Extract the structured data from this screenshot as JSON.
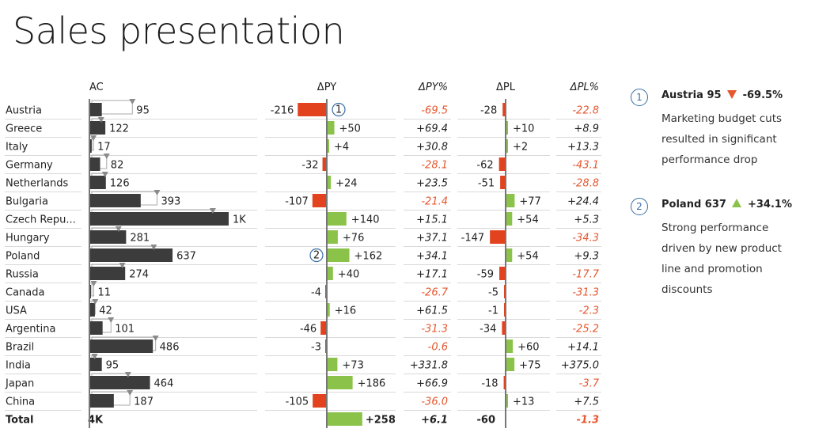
{
  "title": "Sales presentation",
  "colors": {
    "bar_ac": "#3c3c3c",
    "positive": "#8bc34a",
    "negative": "#e2431e",
    "neg_text": "#e5572e",
    "axis": "#777777",
    "badge": "#3a6ea5"
  },
  "chart_data": {
    "type": "table",
    "headers": {
      "country": "",
      "ac": "AC",
      "dpy": "ΔPY",
      "dpy_pct": "ΔPY%",
      "dpl": "ΔPL",
      "dpl_pct": "ΔPL%"
    },
    "rows": [
      {
        "name": "Austria",
        "ac": 95,
        "ac_label": "95",
        "py": 311,
        "dpy": -216,
        "dpy_label": "-216",
        "dpy_pct": "-69.5",
        "dpl": -28,
        "dpl_label": "-28",
        "dpl_pct": "-22.8",
        "marker": "1"
      },
      {
        "name": "Greece",
        "ac": 122,
        "ac_label": "122",
        "py": 72,
        "dpy": 50,
        "dpy_label": "+50",
        "dpy_pct": "+69.4",
        "dpl": 10,
        "dpl_label": "+10",
        "dpl_pct": "+8.9"
      },
      {
        "name": "Italy",
        "ac": 17,
        "ac_label": "17",
        "py": 13,
        "dpy": 4,
        "dpy_label": "+4",
        "dpy_pct": "+30.8",
        "dpl": 2,
        "dpl_label": "+2",
        "dpl_pct": "+13.3"
      },
      {
        "name": "Germany",
        "ac": 82,
        "ac_label": "82",
        "py": 114,
        "dpy": -32,
        "dpy_label": "-32",
        "dpy_pct": "-28.1",
        "dpl": -62,
        "dpl_label": "-62",
        "dpl_pct": "-43.1"
      },
      {
        "name": "Netherlands",
        "ac": 126,
        "ac_label": "126",
        "py": 102,
        "dpy": 24,
        "dpy_label": "+24",
        "dpy_pct": "+23.5",
        "dpl": -51,
        "dpl_label": "-51",
        "dpl_pct": "-28.8"
      },
      {
        "name": "Bulgaria",
        "ac": 393,
        "ac_label": "393",
        "py": 500,
        "dpy": -107,
        "dpy_label": "-107",
        "dpy_pct": "-21.4",
        "dpl": 77,
        "dpl_label": "+77",
        "dpl_pct": "+24.4"
      },
      {
        "name": "Czech Repu...",
        "ac": 1067,
        "ac_label": "1K",
        "py": 927,
        "dpy": 140,
        "dpy_label": "+140",
        "dpy_pct": "+15.1",
        "dpl": 54,
        "dpl_label": "+54",
        "dpl_pct": "+5.3"
      },
      {
        "name": "Hungary",
        "ac": 281,
        "ac_label": "281",
        "py": 205,
        "dpy": 76,
        "dpy_label": "+76",
        "dpy_pct": "+37.1",
        "dpl": -147,
        "dpl_label": "-147",
        "dpl_pct": "-34.3"
      },
      {
        "name": "Poland",
        "ac": 637,
        "ac_label": "637",
        "py": 475,
        "dpy": 162,
        "dpy_label": "+162",
        "dpy_pct": "+34.1",
        "dpl": 54,
        "dpl_label": "+54",
        "dpl_pct": "+9.3",
        "marker": "2"
      },
      {
        "name": "Russia",
        "ac": 274,
        "ac_label": "274",
        "py": 234,
        "dpy": 40,
        "dpy_label": "+40",
        "dpy_pct": "+17.1",
        "dpl": -59,
        "dpl_label": "-59",
        "dpl_pct": "-17.7"
      },
      {
        "name": "Canada",
        "ac": 11,
        "ac_label": "11",
        "py": 15,
        "dpy": -4,
        "dpy_label": "-4",
        "dpy_pct": "-26.7",
        "dpl": -5,
        "dpl_label": "-5",
        "dpl_pct": "-31.3"
      },
      {
        "name": "USA",
        "ac": 42,
        "ac_label": "42",
        "py": 26,
        "dpy": 16,
        "dpy_label": "+16",
        "dpy_pct": "+61.5",
        "dpl": -1,
        "dpl_label": "-1",
        "dpl_pct": "-2.3"
      },
      {
        "name": "Argentina",
        "ac": 101,
        "ac_label": "101",
        "py": 147,
        "dpy": -46,
        "dpy_label": "-46",
        "dpy_pct": "-31.3",
        "dpl": -34,
        "dpl_label": "-34",
        "dpl_pct": "-25.2"
      },
      {
        "name": "Brazil",
        "ac": 486,
        "ac_label": "486",
        "py": 489,
        "dpy": -3,
        "dpy_label": "-3",
        "dpy_pct": "-0.6",
        "dpl": 60,
        "dpl_label": "+60",
        "dpl_pct": "+14.1"
      },
      {
        "name": "India",
        "ac": 95,
        "ac_label": "95",
        "py": 22,
        "dpy": 73,
        "dpy_label": "+73",
        "dpy_pct": "+331.8",
        "dpl": 75,
        "dpl_label": "+75",
        "dpl_pct": "+375.0"
      },
      {
        "name": "Japan",
        "ac": 464,
        "ac_label": "464",
        "py": 278,
        "dpy": 186,
        "dpy_label": "+186",
        "dpy_pct": "+66.9",
        "dpl": -18,
        "dpl_label": "-18",
        "dpl_pct": "-3.7"
      },
      {
        "name": "China",
        "ac": 187,
        "ac_label": "187",
        "py": 292,
        "dpy": -105,
        "dpy_label": "-105",
        "dpy_pct": "-36.0",
        "dpl": 13,
        "dpl_label": "+13",
        "dpl_pct": "+7.5"
      }
    ],
    "total": {
      "name": "Total",
      "ac_label": "4K",
      "dpy": 258,
      "dpy_label": "+258",
      "dpy_pct": "+6.1",
      "dpl": -60,
      "dpl_label": "-60",
      "dpl_pct": "-1.3"
    }
  },
  "notes": [
    {
      "badge": "1",
      "country": "Austria",
      "value": "95",
      "direction": "down",
      "pct": "-69.5%",
      "text": "Marketing budget cuts resulted in significant performance drop"
    },
    {
      "badge": "2",
      "country": "Poland",
      "value": "637",
      "direction": "up",
      "pct": "+34.1%",
      "text": "Strong performance driven by new product line and promotion discounts"
    }
  ]
}
